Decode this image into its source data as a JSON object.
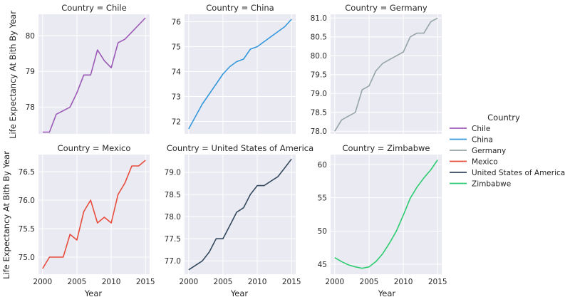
{
  "chart_data": {
    "type": "line",
    "facet_title_prefix": "Country = ",
    "legend": {
      "title": "Country",
      "placement": "right",
      "entries": [
        "Chile",
        "China",
        "Germany",
        "Mexico",
        "United States of America",
        "Zimbabwe"
      ]
    },
    "ylabel": "Life Expectancy At Bith By Year",
    "xlabel": "Year",
    "x": [
      2000,
      2001,
      2002,
      2003,
      2004,
      2005,
      2006,
      2007,
      2008,
      2009,
      2010,
      2011,
      2012,
      2013,
      2014,
      2015
    ],
    "xticks": [
      2000,
      2005,
      2010,
      2015
    ],
    "grid": true,
    "panels": [
      {
        "country": "Chile",
        "color": "#9b59b6",
        "ylim": [
          77.25,
          80.6
        ],
        "yticks": [
          78,
          79,
          80
        ],
        "ytick_labels": [
          "78",
          "79",
          "80"
        ],
        "show_xticks": false,
        "values": [
          77.3,
          77.3,
          77.8,
          77.9,
          78.0,
          78.4,
          78.9,
          78.9,
          79.6,
          79.3,
          79.1,
          79.8,
          79.9,
          80.1,
          80.3,
          80.5
        ]
      },
      {
        "country": "China",
        "color": "#3498db",
        "ylim": [
          71.5,
          76.3
        ],
        "yticks": [
          72,
          73,
          74,
          75,
          76
        ],
        "ytick_labels": [
          "72",
          "73",
          "74",
          "75",
          "76"
        ],
        "show_xticks": false,
        "values": [
          71.7,
          72.2,
          72.7,
          73.1,
          73.5,
          73.9,
          74.2,
          74.4,
          74.5,
          74.9,
          75.0,
          75.2,
          75.4,
          75.6,
          75.8,
          76.1
        ]
      },
      {
        "country": "Germany",
        "color": "#95a5a6",
        "ylim": [
          77.93,
          81.1
        ],
        "yticks": [
          78.0,
          78.5,
          79.0,
          79.5,
          80.0,
          80.5,
          81.0
        ],
        "ytick_labels": [
          "78.0",
          "78.5",
          "79.0",
          "79.5",
          "80.0",
          "80.5",
          "81.0"
        ],
        "show_xticks": false,
        "values": [
          78.0,
          78.3,
          78.4,
          78.5,
          79.1,
          79.2,
          79.6,
          79.8,
          79.9,
          80.0,
          80.1,
          80.5,
          80.6,
          80.6,
          80.9,
          81.0
        ]
      },
      {
        "country": "Mexico",
        "color": "#e74c3c",
        "ylim": [
          74.7,
          76.8
        ],
        "yticks": [
          75.0,
          75.5,
          76.0,
          76.5
        ],
        "ytick_labels": [
          "75.0",
          "75.5",
          "76.0",
          "76.5"
        ],
        "show_xticks": true,
        "values": [
          74.8,
          75.0,
          75.0,
          75.0,
          75.4,
          75.3,
          75.8,
          76.0,
          75.6,
          75.7,
          75.6,
          76.1,
          76.3,
          76.6,
          76.6,
          76.7
        ]
      },
      {
        "country": "United States of America",
        "color": "#34495e",
        "ylim": [
          76.7,
          79.4
        ],
        "yticks": [
          77.0,
          77.5,
          78.0,
          78.5,
          79.0
        ],
        "ytick_labels": [
          "77.0",
          "77.5",
          "78.0",
          "78.5",
          "79.0"
        ],
        "show_xticks": true,
        "values": [
          76.8,
          76.9,
          77.0,
          77.2,
          77.5,
          77.5,
          77.8,
          78.1,
          78.2,
          78.5,
          78.7,
          78.7,
          78.8,
          78.9,
          79.1,
          79.3
        ]
      },
      {
        "country": "Zimbabwe",
        "color": "#2ecc71",
        "ylim": [
          43.5,
          61.5
        ],
        "yticks": [
          45,
          50,
          55,
          60
        ],
        "ytick_labels": [
          "45",
          "50",
          "55",
          "60"
        ],
        "show_xticks": true,
        "values": [
          46.0,
          45.4,
          44.9,
          44.6,
          44.4,
          44.6,
          45.4,
          46.6,
          48.2,
          50.0,
          52.4,
          54.9,
          56.6,
          58.0,
          59.2,
          60.7
        ]
      }
    ]
  }
}
